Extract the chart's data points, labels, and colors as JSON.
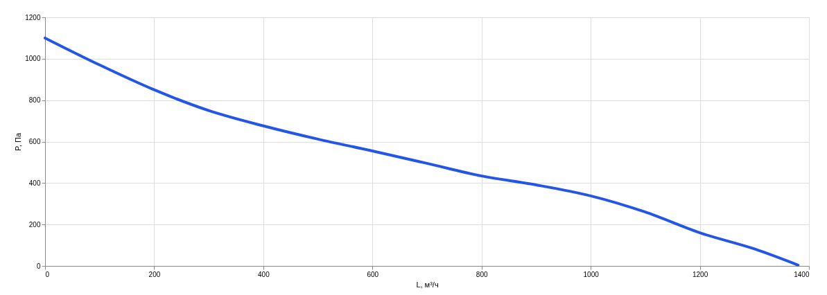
{
  "chart_data": {
    "type": "line",
    "xlabel": "L, м³/ч",
    "ylabel": "P, Па",
    "x": [
      0,
      100,
      200,
      300,
      400,
      500,
      600,
      700,
      800,
      900,
      1000,
      1100,
      1200,
      1300,
      1380
    ],
    "series": [
      {
        "color": "#2255e8",
        "values": [
          1100,
          970,
          850,
          750,
          676,
          612,
          555,
          495,
          434,
          391,
          338,
          260,
          160,
          82,
          4
        ]
      }
    ],
    "xlim": [
      0,
      1400
    ],
    "xticks": [
      0,
      200,
      400,
      600,
      800,
      1000,
      1200,
      1400
    ],
    "ylim": [
      0,
      1200
    ],
    "yticks": [
      0,
      200,
      400,
      600,
      800,
      1000,
      1200
    ],
    "grid": true,
    "marker": "none",
    "line_style": "solid"
  }
}
